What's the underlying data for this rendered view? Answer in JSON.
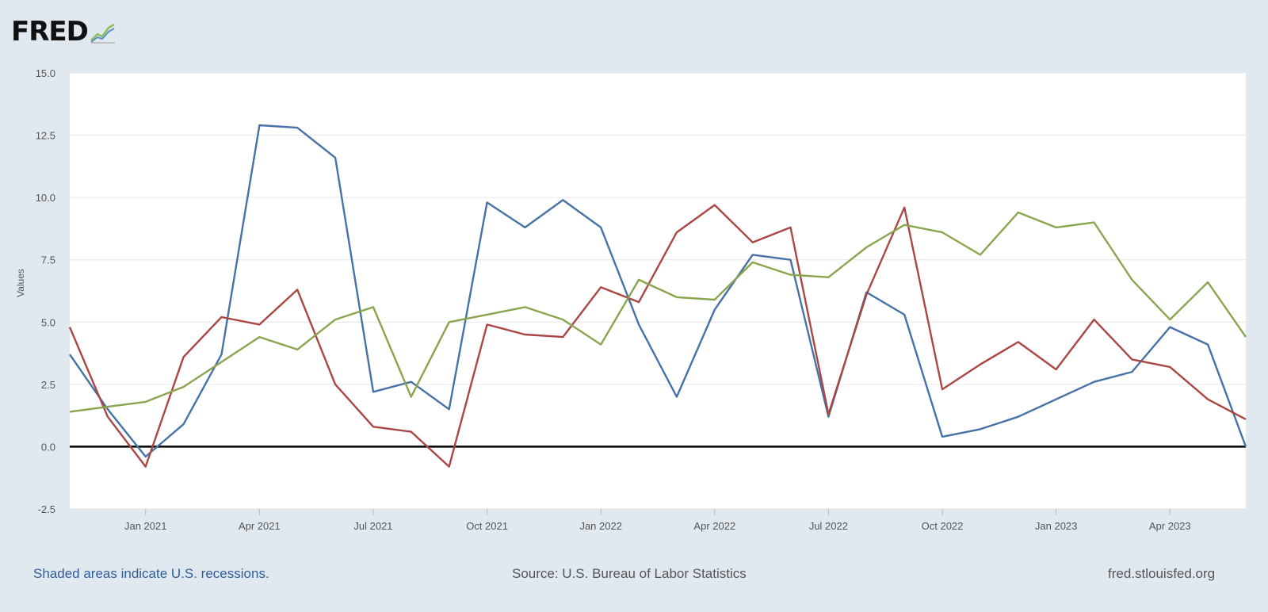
{
  "header": {
    "logo_text": "FRED"
  },
  "footer": {
    "recession_note": "Shaded areas indicate U.S. recessions.",
    "source": "Source: U.S. Bureau of Labor Statistics",
    "site": "fred.stlouisfed.org"
  },
  "chart_data": {
    "type": "line",
    "title": "",
    "xlabel": "",
    "ylabel": "Values",
    "ylim": [
      -2.5,
      15.0
    ],
    "yticks": [
      -2.5,
      0.0,
      2.5,
      5.0,
      7.5,
      10.0,
      12.5,
      15.0
    ],
    "ytick_labels": [
      "-2.5",
      "0.0",
      "2.5",
      "5.0",
      "7.5",
      "10.0",
      "12.5",
      "15.0"
    ],
    "x": [
      "2020-11",
      "2020-12",
      "2021-01",
      "2021-02",
      "2021-03",
      "2021-04",
      "2021-05",
      "2021-06",
      "2021-07",
      "2021-08",
      "2021-09",
      "2021-10",
      "2021-11",
      "2021-12",
      "2022-01",
      "2022-02",
      "2022-03",
      "2022-04",
      "2022-05",
      "2022-06",
      "2022-07",
      "2022-08",
      "2022-09",
      "2022-10",
      "2022-11",
      "2022-12",
      "2023-01",
      "2023-02",
      "2023-03",
      "2023-04",
      "2023-05",
      "2023-06"
    ],
    "xlim": [
      "2020-11",
      "2023-06"
    ],
    "xtick_labels": [
      {
        "x": "2021-01",
        "label": "Jan 2021"
      },
      {
        "x": "2021-04",
        "label": "Apr 2021"
      },
      {
        "x": "2021-07",
        "label": "Jul 2021"
      },
      {
        "x": "2021-10",
        "label": "Oct 2021"
      },
      {
        "x": "2022-01",
        "label": "Jan 2022"
      },
      {
        "x": "2022-04",
        "label": "Apr 2022"
      },
      {
        "x": "2022-07",
        "label": "Jul 2022"
      },
      {
        "x": "2022-10",
        "label": "Oct 2022"
      },
      {
        "x": "2023-01",
        "label": "Jan 2023"
      },
      {
        "x": "2023-04",
        "label": "Apr 2023"
      }
    ],
    "series": [
      {
        "color": "#4572a7",
        "values": [
          3.7,
          1.5,
          -0.4,
          0.9,
          3.7,
          12.9,
          12.8,
          11.6,
          2.2,
          2.6,
          1.5,
          9.8,
          8.8,
          9.9,
          8.8,
          4.9,
          2.0,
          5.5,
          7.7,
          7.5,
          1.2,
          6.2,
          5.3,
          0.4,
          0.7,
          1.2,
          1.9,
          2.6,
          3.0,
          4.8,
          4.1,
          0.0
        ]
      },
      {
        "color": "#aa4643",
        "values": [
          4.8,
          1.2,
          -0.8,
          3.6,
          5.2,
          4.9,
          6.3,
          2.5,
          0.8,
          0.6,
          -0.8,
          4.9,
          4.5,
          4.4,
          6.4,
          5.8,
          8.6,
          9.7,
          8.2,
          8.8,
          1.3,
          6.1,
          9.6,
          2.3,
          3.3,
          4.2,
          3.1,
          5.1,
          3.5,
          3.2,
          1.9,
          1.1
        ]
      },
      {
        "color": "#89a54e",
        "values": [
          1.4,
          1.6,
          1.8,
          2.4,
          3.4,
          4.4,
          3.9,
          5.1,
          5.6,
          2.0,
          5.0,
          5.3,
          5.6,
          5.1,
          4.1,
          6.7,
          6.0,
          5.9,
          7.4,
          6.9,
          6.8,
          8.0,
          8.9,
          8.6,
          7.7,
          9.4,
          8.8,
          9.0,
          6.7,
          5.1,
          6.6,
          4.4
        ]
      }
    ],
    "grid": true,
    "legend": "none",
    "zero_line": true
  }
}
